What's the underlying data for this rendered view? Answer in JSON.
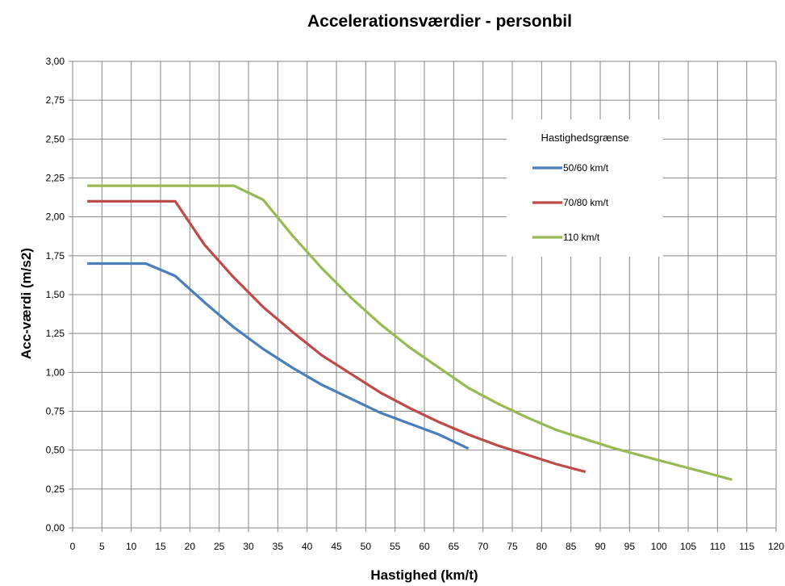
{
  "chart_data": {
    "type": "line",
    "title": "Accelerationsværdier - personbil",
    "xlabel": "Hastighed (km/t)",
    "ylabel": "Acc-værdi (m/s2)",
    "xlim": [
      0,
      120
    ],
    "ylim": [
      0,
      3
    ],
    "x_ticks": [
      "0",
      "5",
      "10",
      "15",
      "20",
      "25",
      "30",
      "35",
      "40",
      "45",
      "50",
      "55",
      "60",
      "65",
      "70",
      "75",
      "80",
      "85",
      "90",
      "95",
      "100",
      "105",
      "110",
      "115",
      "120"
    ],
    "y_ticks": [
      "0,00",
      "0,25",
      "0,50",
      "0,75",
      "1,00",
      "1,25",
      "1,50",
      "1,75",
      "2,00",
      "2,25",
      "2,50",
      "2,75",
      "3,00"
    ],
    "grid": true,
    "legend": {
      "title": "Hastighedsgrænse",
      "placement": "top-right"
    },
    "series": [
      {
        "name": "50/60 km/t",
        "color": "#4a7ebb",
        "points": [
          [
            2.5,
            1.7
          ],
          [
            12.5,
            1.7
          ],
          [
            17.5,
            1.62
          ],
          [
            22.5,
            1.45
          ],
          [
            27.5,
            1.29
          ],
          [
            32.5,
            1.15
          ],
          [
            37.5,
            1.03
          ],
          [
            42.5,
            0.92
          ],
          [
            47.5,
            0.83
          ],
          [
            52.5,
            0.74
          ],
          [
            57.5,
            0.67
          ],
          [
            62.5,
            0.6
          ],
          [
            67.5,
            0.51
          ]
        ]
      },
      {
        "name": "70/80 km/t",
        "color": "#be4b48",
        "points": [
          [
            2.5,
            2.1
          ],
          [
            17.5,
            2.1
          ],
          [
            22.5,
            1.82
          ],
          [
            27.5,
            1.61
          ],
          [
            32.5,
            1.42
          ],
          [
            37.5,
            1.26
          ],
          [
            42.5,
            1.11
          ],
          [
            47.5,
            0.99
          ],
          [
            52.5,
            0.87
          ],
          [
            57.5,
            0.77
          ],
          [
            62.5,
            0.68
          ],
          [
            67.5,
            0.6
          ],
          [
            72.5,
            0.53
          ],
          [
            77.5,
            0.47
          ],
          [
            82.5,
            0.41
          ],
          [
            87.5,
            0.36
          ]
        ]
      },
      {
        "name": "110 km/t",
        "color": "#98b954",
        "points": [
          [
            2.5,
            2.2
          ],
          [
            27.5,
            2.2
          ],
          [
            32.5,
            2.11
          ],
          [
            37.5,
            1.88
          ],
          [
            42.5,
            1.67
          ],
          [
            47.5,
            1.48
          ],
          [
            52.5,
            1.31
          ],
          [
            57.5,
            1.16
          ],
          [
            62.5,
            1.03
          ],
          [
            67.5,
            0.9
          ],
          [
            72.5,
            0.8
          ],
          [
            77.5,
            0.71
          ],
          [
            82.5,
            0.63
          ],
          [
            87.5,
            0.57
          ],
          [
            92.5,
            0.51
          ],
          [
            97.5,
            0.46
          ],
          [
            102.5,
            0.41
          ],
          [
            107.5,
            0.36
          ],
          [
            112.5,
            0.31
          ]
        ]
      }
    ]
  }
}
